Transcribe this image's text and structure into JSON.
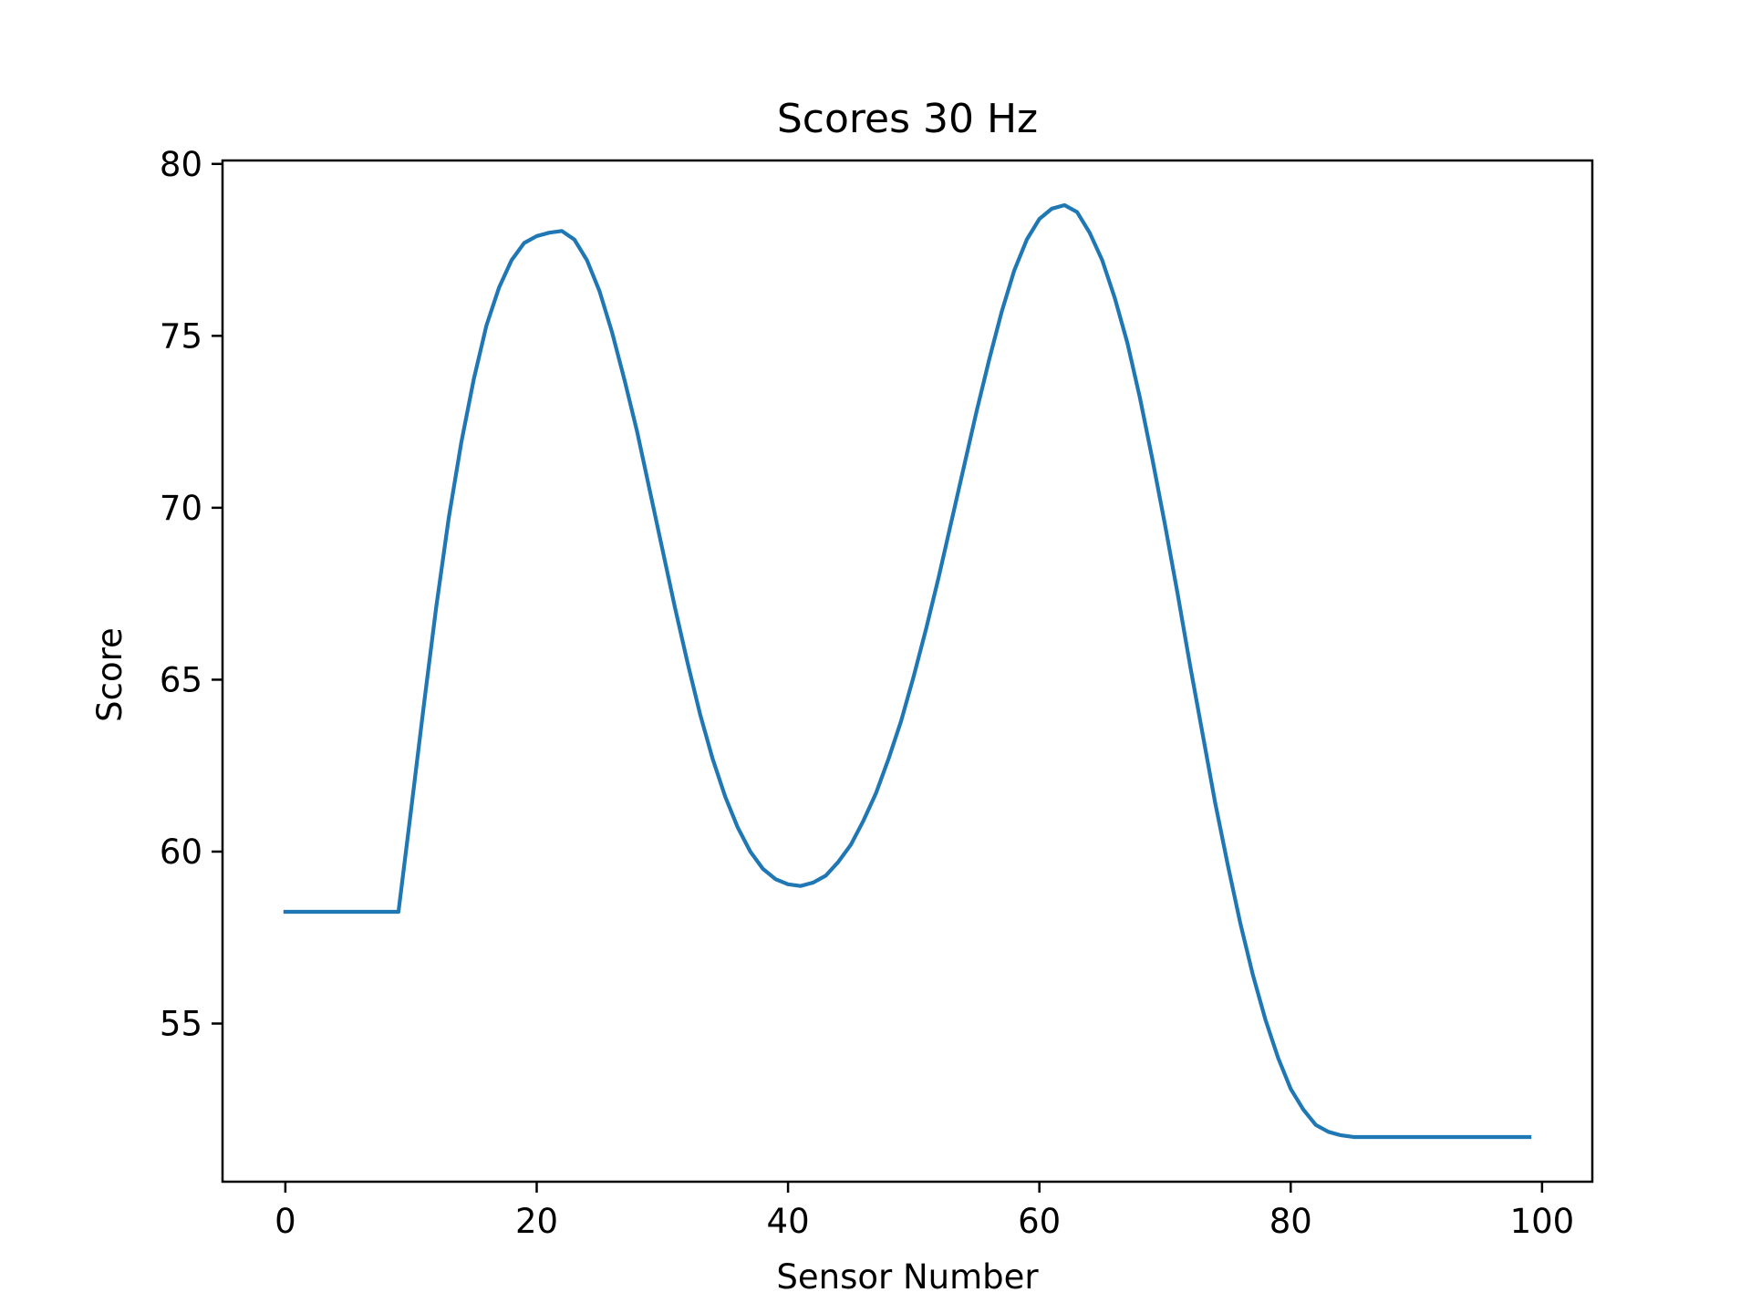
{
  "chart_data": {
    "type": "line",
    "title": "Scores 30 Hz",
    "xlabel": "Sensor Number",
    "ylabel": "Score",
    "xlim": [
      -5,
      104
    ],
    "ylim": [
      50.4,
      80.1
    ],
    "xticks": [
      0,
      20,
      40,
      60,
      80,
      100
    ],
    "yticks": [
      55,
      60,
      65,
      70,
      75,
      80
    ],
    "xtick_labels": [
      "0",
      "20",
      "40",
      "60",
      "80",
      "100"
    ],
    "ytick_labels": [
      "55",
      "60",
      "65",
      "70",
      "75",
      "80"
    ],
    "grid": false,
    "legend": "none",
    "colors": {
      "line": "#1f77b4",
      "axes": "#000000",
      "background": "#ffffff"
    },
    "series": [
      {
        "x": [
          0,
          1,
          2,
          3,
          4,
          5,
          6,
          7,
          8,
          9,
          10,
          11,
          12,
          13,
          14,
          15,
          16,
          17,
          18,
          19,
          20,
          21,
          22,
          23,
          24,
          25,
          26,
          27,
          28,
          29,
          30,
          31,
          32,
          33,
          34,
          35,
          36,
          37,
          38,
          39,
          40,
          41,
          42,
          43,
          44,
          45,
          46,
          47,
          48,
          49,
          50,
          51,
          52,
          53,
          54,
          55,
          56,
          57,
          58,
          59,
          60,
          61,
          62,
          63,
          64,
          65,
          66,
          67,
          68,
          69,
          70,
          71,
          72,
          73,
          74,
          75,
          76,
          77,
          78,
          79,
          80,
          81,
          82,
          83,
          84,
          85,
          86,
          87,
          88,
          89,
          90,
          91,
          92,
          93,
          94,
          95,
          96,
          97,
          98,
          99
        ],
        "values": [
          58.25,
          58.25,
          58.25,
          58.25,
          58.25,
          58.25,
          58.25,
          58.25,
          58.25,
          58.25,
          61.2,
          64.2,
          67.1,
          69.7,
          71.9,
          73.75,
          75.3,
          76.4,
          77.2,
          77.7,
          77.9,
          78.0,
          78.05,
          77.8,
          77.2,
          76.3,
          75.1,
          73.7,
          72.2,
          70.5,
          68.8,
          67.1,
          65.5,
          64.0,
          62.7,
          61.6,
          60.7,
          60.0,
          59.5,
          59.2,
          59.05,
          59.0,
          59.1,
          59.3,
          59.7,
          60.2,
          60.9,
          61.7,
          62.7,
          63.8,
          65.1,
          66.5,
          68.0,
          69.6,
          71.2,
          72.8,
          74.3,
          75.7,
          76.9,
          77.8,
          78.4,
          78.7,
          78.8,
          78.6,
          78.0,
          77.2,
          76.1,
          74.8,
          73.2,
          71.4,
          69.5,
          67.5,
          65.4,
          63.4,
          61.4,
          59.6,
          57.9,
          56.4,
          55.1,
          54.0,
          53.1,
          52.5,
          52.05,
          51.85,
          51.75,
          51.7,
          51.7,
          51.7,
          51.7,
          51.7,
          51.7,
          51.7,
          51.7,
          51.7,
          51.7,
          51.7,
          51.7,
          51.7,
          51.7,
          51.7
        ]
      }
    ]
  }
}
